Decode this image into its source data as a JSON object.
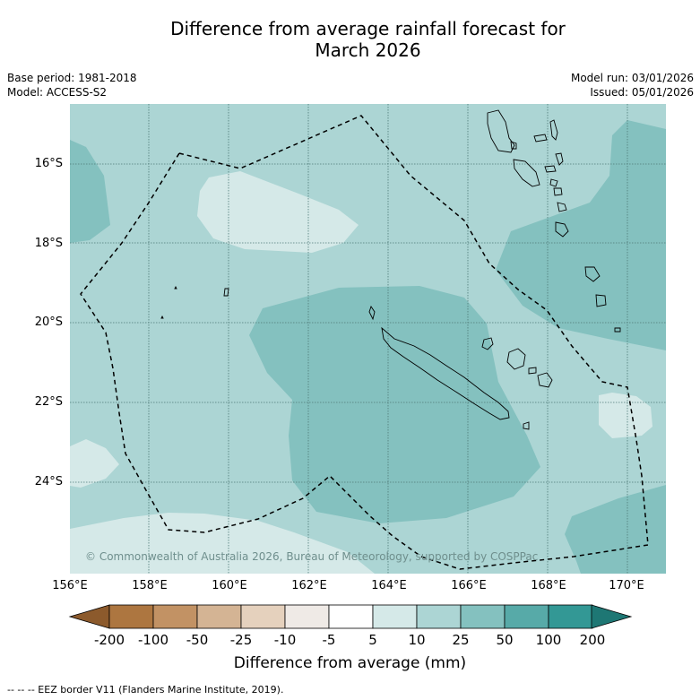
{
  "title": {
    "line1": "Difference from average rainfall forecast for",
    "line2": "March 2026"
  },
  "info": {
    "base_period": "Base period: 1981-2018",
    "model": "Model: ACCESS-S2",
    "model_run": "Model run: 03/01/2026",
    "issued": "Issued: 05/01/2026"
  },
  "map": {
    "lat_labels": [
      "16°S",
      "18°S",
      "20°S",
      "22°S",
      "24°S"
    ],
    "lon_labels": [
      "156°E",
      "158°E",
      "160°E",
      "162°E",
      "164°E",
      "166°E",
      "168°E",
      "170°E"
    ],
    "copyright": "© Commonwealth of Australia 2026, Bureau of Meteorology, supported by COSPPac"
  },
  "colorbar": {
    "labels": [
      "-200",
      "-100",
      "-50",
      "-25",
      "-10",
      "-5",
      "5",
      "10",
      "25",
      "50",
      "100",
      "200"
    ],
    "colors": [
      "#8c5a2c",
      "#ad7640",
      "#c29264",
      "#d4b494",
      "#e5d1bd",
      "#efeae6",
      "#ffffff",
      "#d5e9e8",
      "#acd5d4",
      "#84c1bf",
      "#57aaa8",
      "#339895",
      "#1e7774"
    ],
    "title": "Difference from average (mm)"
  },
  "footnote": "--  --  -- EEZ border V11 (Flanders Marine Institute, 2019)."
}
